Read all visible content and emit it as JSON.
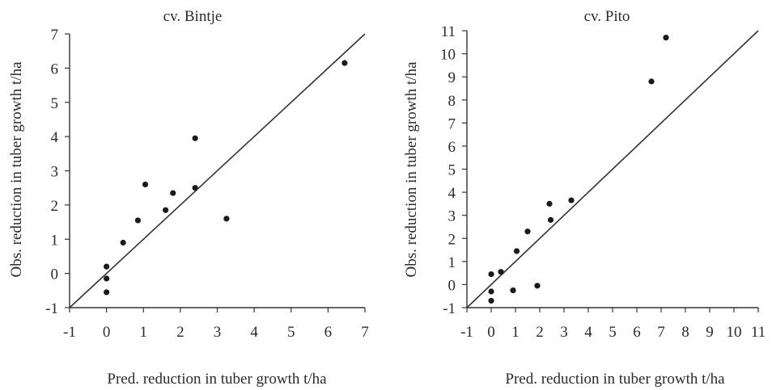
{
  "chart_data": [
    {
      "type": "scatter",
      "title": "cv. Bintje",
      "xlabel": "Pred. reduction in tuber growth t/ha",
      "ylabel": "Obs. reduction in tuber growth t/ha",
      "xlim": [
        -1,
        7
      ],
      "ylim": [
        -1,
        7
      ],
      "xticks": [
        "-1",
        "0",
        "1",
        "2",
        "3",
        "4",
        "5",
        "6",
        "7"
      ],
      "yticks": [
        "-1",
        "0",
        "1",
        "2",
        "3",
        "4",
        "5",
        "6",
        "7"
      ],
      "grid": false,
      "reference_line": "1:1",
      "points": [
        {
          "x": 0.0,
          "y": 0.2
        },
        {
          "x": 0.0,
          "y": -0.15
        },
        {
          "x": 0.0,
          "y": -0.55
        },
        {
          "x": 0.45,
          "y": 0.9
        },
        {
          "x": 0.85,
          "y": 1.55
        },
        {
          "x": 1.05,
          "y": 2.6
        },
        {
          "x": 1.6,
          "y": 1.85
        },
        {
          "x": 1.8,
          "y": 2.35
        },
        {
          "x": 2.4,
          "y": 2.5
        },
        {
          "x": 2.4,
          "y": 3.95
        },
        {
          "x": 3.25,
          "y": 1.6
        },
        {
          "x": 6.45,
          "y": 6.15
        }
      ]
    },
    {
      "type": "scatter",
      "title": "cv. Pito",
      "xlabel": "Pred. reduction in tuber growth t/ha",
      "ylabel": "Obs. reduction in tuber growth t/ha",
      "xlim": [
        -1,
        11
      ],
      "ylim": [
        -1,
        11
      ],
      "xticks": [
        "-1",
        "0",
        "1",
        "2",
        "3",
        "4",
        "5",
        "6",
        "7",
        "8",
        "9",
        "10",
        "11"
      ],
      "yticks": [
        "-1",
        "0",
        "1",
        "2",
        "3",
        "4",
        "5",
        "6",
        "7",
        "8",
        "9",
        "10",
        "11"
      ],
      "grid": false,
      "reference_line": "1:1",
      "points": [
        {
          "x": 0.0,
          "y": 0.45
        },
        {
          "x": 0.0,
          "y": -0.3
        },
        {
          "x": 0.0,
          "y": -0.7
        },
        {
          "x": 0.4,
          "y": 0.55
        },
        {
          "x": 0.9,
          "y": -0.25
        },
        {
          "x": 1.05,
          "y": 1.45
        },
        {
          "x": 1.5,
          "y": 2.3
        },
        {
          "x": 1.9,
          "y": -0.05
        },
        {
          "x": 2.4,
          "y": 3.5
        },
        {
          "x": 2.45,
          "y": 2.8
        },
        {
          "x": 3.3,
          "y": 3.65
        },
        {
          "x": 6.6,
          "y": 8.8
        },
        {
          "x": 7.2,
          "y": 10.7
        }
      ]
    }
  ]
}
